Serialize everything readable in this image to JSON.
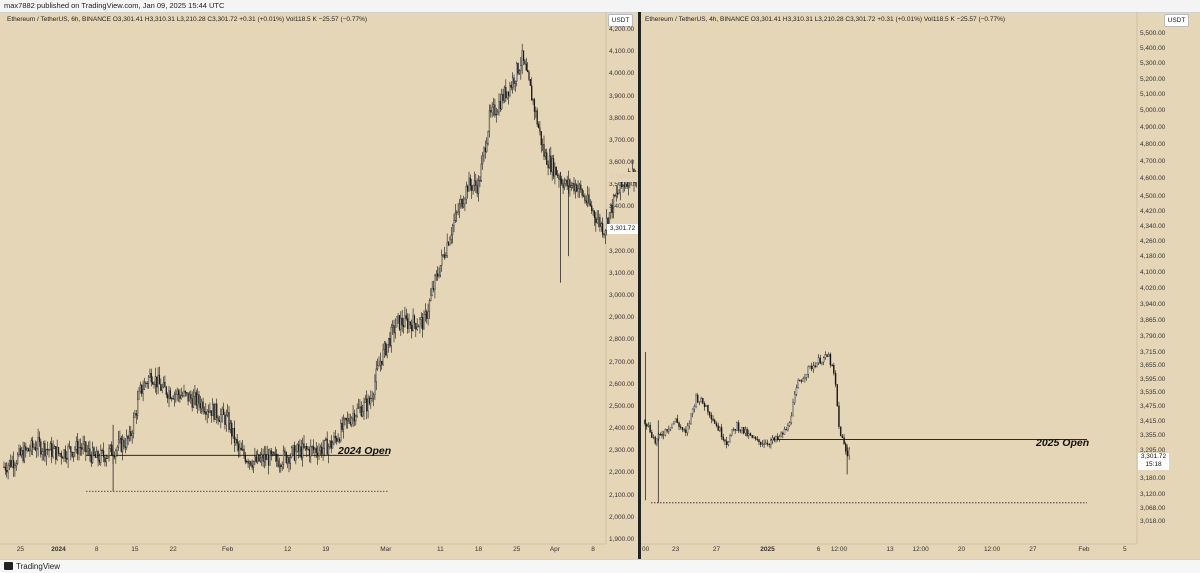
{
  "header": {
    "caption": "max7882 published on TradingView.com, Jan 09, 2025 15:44 UTC"
  },
  "footer": {
    "brand": "TradingView"
  },
  "colors": {
    "background": "#e6d6b8",
    "bull": "#ffffff",
    "bear": "#1a1a1a",
    "wick": "#111111"
  },
  "left_chart": {
    "legend": "Ethereum / TetherUS, 6h, BINANCE  O3,301.41  H3,310.31  L3,210.28  C3,301.72  +0.31 (+0.01%)  Vol118.5 K  −25.57 (−0.77%)",
    "currency": "USDT",
    "y_ticks": [
      "4,200.00",
      "4,100.00",
      "4,000.00",
      "3,900.00",
      "3,800.00",
      "3,700.00",
      "3,600.00",
      "3,500.00",
      "3,400.00",
      "3,300.00",
      "3,200.00",
      "3,100.00",
      "3,000.00",
      "2,900.00",
      "2,800.00",
      "2,700.00",
      "2,600.00",
      "2,500.00",
      "2,400.00",
      "2,300.00",
      "2,200.00",
      "2,100.00",
      "2,000.00",
      "1,900.00"
    ],
    "x_ticks": [
      "25",
      "2024",
      "8",
      "15",
      "22",
      "Feb",
      "12",
      "19",
      "Mar",
      "11",
      "18",
      "25",
      "Apr",
      "8"
    ],
    "annotation": "2024 Open",
    "price_label": "3,301.72",
    "hidden_label": "3,515.52"
  },
  "right_chart": {
    "legend": "Ethereum / TetherUS, 4h, BINANCE  O3,301.41  H3,310.31  L3,210.28  C3,301.72  +0.31 (+0.01%)  Vol118.5 K  −25.57 (−0.77%)",
    "currency": "USDT",
    "y_ticks": [
      "5,500.00",
      "5,400.00",
      "5,300.00",
      "5,200.00",
      "5,100.00",
      "5,000.00",
      "4,900.00",
      "4,800.00",
      "4,700.00",
      "4,600.00",
      "4,500.00",
      "4,420.00",
      "4,340.00",
      "4,260.00",
      "4,180.00",
      "4,100.00",
      "4,020.00",
      "3,940.00",
      "3,865.00",
      "3,790.00",
      "3,715.00",
      "3,655.00",
      "3,595.00",
      "3,535.00",
      "3,475.00",
      "3,415.00",
      "3,355.00",
      "3,295.00",
      "3,235.00",
      "3,180.00",
      "3,120.00",
      "3,068.00",
      "3,018.00"
    ],
    "x_ticks": [
      "00",
      "23",
      "27",
      "2025",
      "6",
      "12:00",
      "13",
      "12:00",
      "20",
      "12:00",
      "27",
      "Feb",
      "5"
    ],
    "annotation": "2025 Open",
    "price_label": "3,301.72",
    "countdown": "15:18"
  },
  "chart_data": [
    {
      "type": "candlestick",
      "title": "Ethereum / TetherUS, 6h, BINANCE",
      "ylim": [
        1900,
        4200
      ],
      "x_range": [
        "2023-12-22",
        "2024-04-10"
      ],
      "x_ticks": [
        {
          "label": "25",
          "date": "2023-12-25"
        },
        {
          "label": "2024",
          "date": "2024-01-01"
        },
        {
          "label": "8",
          "date": "2024-01-08"
        },
        {
          "label": "15",
          "date": "2024-01-15"
        },
        {
          "label": "22",
          "date": "2024-01-22"
        },
        {
          "label": "Feb",
          "date": "2024-02-01"
        },
        {
          "label": "12",
          "date": "2024-02-12"
        },
        {
          "label": "19",
          "date": "2024-02-19"
        },
        {
          "label": "Mar",
          "date": "2024-03-01"
        },
        {
          "label": "11",
          "date": "2024-03-11"
        },
        {
          "label": "18",
          "date": "2024-03-18"
        },
        {
          "label": "25",
          "date": "2024-03-25"
        },
        {
          "label": "Apr",
          "date": "2024-04-01"
        },
        {
          "label": "8",
          "date": "2024-04-08"
        }
      ],
      "candles_per_day": 4,
      "path": [
        [
          0,
          2230
        ],
        [
          6,
          2330
        ],
        [
          10,
          2290
        ],
        [
          14,
          2320
        ],
        [
          17,
          2265
        ],
        [
          19,
          2290
        ],
        [
          23,
          2355
        ],
        [
          25,
          2570
        ],
        [
          27,
          2650
        ],
        [
          29,
          2580
        ],
        [
          33,
          2550
        ],
        [
          36,
          2520
        ],
        [
          41,
          2440
        ],
        [
          43,
          2300
        ],
        [
          46,
          2250
        ],
        [
          48,
          2270
        ],
        [
          50,
          2260
        ],
        [
          54,
          2300
        ],
        [
          58,
          2310
        ],
        [
          60,
          2330
        ],
        [
          62,
          2400
        ],
        [
          64,
          2470
        ],
        [
          67,
          2520
        ],
        [
          69,
          2710
        ],
        [
          72,
          2880
        ],
        [
          75,
          2880
        ],
        [
          77,
          2880
        ],
        [
          79,
          3060
        ],
        [
          82,
          3300
        ],
        [
          85,
          3500
        ],
        [
          87,
          3500
        ],
        [
          89,
          3800
        ],
        [
          93,
          3960
        ],
        [
          95,
          4070
        ],
        [
          97,
          3880
        ],
        [
          99,
          3640
        ],
        [
          103,
          3500
        ],
        [
          105,
          3500
        ],
        [
          107,
          3420
        ],
        [
          110,
          3300
        ],
        [
          112,
          3440
        ],
        [
          115,
          3560
        ],
        [
          117,
          3500
        ],
        [
          120,
          3560
        ],
        [
          122,
          3440
        ],
        [
          125,
          3300
        ],
        [
          128,
          3360
        ],
        [
          130,
          3440
        ],
        [
          132,
          3600
        ],
        [
          133,
          3630
        ],
        [
          134,
          3540
        ],
        [
          135,
          3520
        ]
      ],
      "annotation": {
        "text": "2024 Open",
        "price": 2282
      },
      "support_line": 2120,
      "last_price": 3301.72
    },
    {
      "type": "candlestick",
      "title": "Ethereum / TetherUS, 4h, BINANCE",
      "y_scale": "log",
      "y_ticks": [
        3018,
        3068,
        3120,
        3180,
        3235,
        3295,
        3355,
        3415,
        3475,
        3535,
        3595,
        3655,
        3715,
        3790,
        3865,
        3940,
        4020,
        4100,
        4180,
        4260,
        4340,
        4420,
        4500,
        4600,
        4700,
        4800,
        4900,
        5000,
        5100,
        5200,
        5300,
        5400,
        5500
      ],
      "x_range": [
        "2024-12-20",
        "2025-02-06"
      ],
      "x_ticks": [
        {
          "label": "00",
          "date": "2024-12-20"
        },
        {
          "label": "23",
          "date": "2024-12-23"
        },
        {
          "label": "27",
          "date": "2024-12-27"
        },
        {
          "label": "2025",
          "date": "2025-01-01"
        },
        {
          "label": "6",
          "date": "2025-01-06"
        },
        {
          "label": "12:00",
          "date": "2025-01-08"
        },
        {
          "label": "13",
          "date": "2025-01-13"
        },
        {
          "label": "12:00",
          "date": "2025-01-16"
        },
        {
          "label": "20",
          "date": "2025-01-20"
        },
        {
          "label": "12:00",
          "date": "2025-01-23"
        },
        {
          "label": "27",
          "date": "2025-01-27"
        },
        {
          "label": "Feb",
          "date": "2025-02-01"
        },
        {
          "label": "5",
          "date": "2025-02-05"
        }
      ],
      "candles_per_day": 6,
      "path": [
        [
          0,
          3420
        ],
        [
          0.5,
          3380
        ],
        [
          1,
          3330
        ],
        [
          2,
          3380
        ],
        [
          3,
          3420
        ],
        [
          4,
          3360
        ],
        [
          5,
          3520
        ],
        [
          6,
          3480
        ],
        [
          7,
          3400
        ],
        [
          8,
          3330
        ],
        [
          9,
          3400
        ],
        [
          10,
          3360
        ],
        [
          11,
          3330
        ],
        [
          12,
          3330
        ],
        [
          13,
          3340
        ],
        [
          14,
          3390
        ],
        [
          15,
          3580
        ],
        [
          16,
          3640
        ],
        [
          17,
          3680
        ],
        [
          18,
          3700
        ],
        [
          18.6,
          3600
        ],
        [
          19,
          3390
        ],
        [
          19.6,
          3300
        ],
        [
          20,
          3250
        ]
      ],
      "annotation": {
        "text": "2025 Open",
        "price": 3340
      },
      "support_line": 3090,
      "last_price": 3301.72
    }
  ]
}
